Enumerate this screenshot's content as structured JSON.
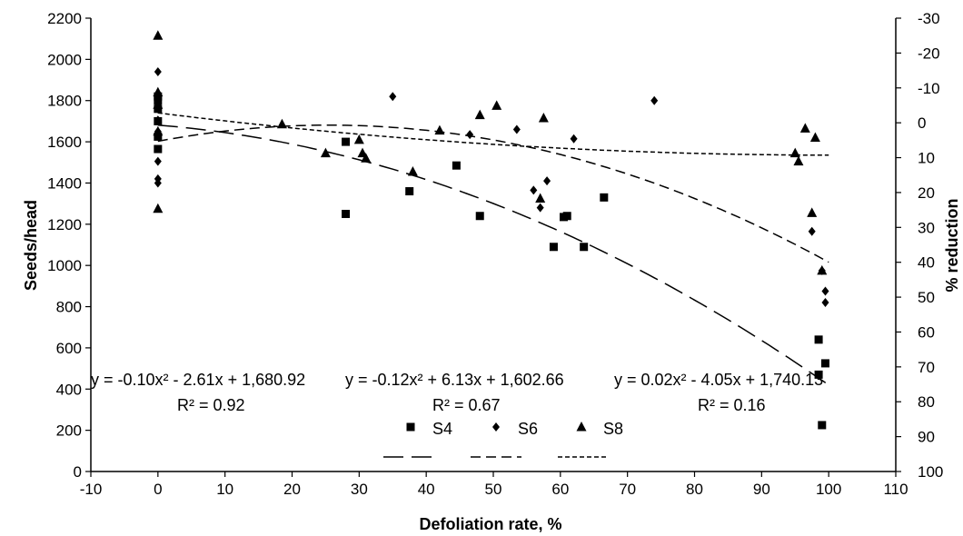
{
  "chart_data": {
    "type": "scatter",
    "title": "",
    "xlabel": "Defoliation rate, %",
    "ylabel": "Seeds/head",
    "y2label": "% reduction",
    "xlim": [
      -10,
      110
    ],
    "ylim": [
      0,
      2200
    ],
    "y2lim": [
      100,
      -30
    ],
    "x_ticks": [
      -10,
      0,
      10,
      20,
      30,
      40,
      50,
      60,
      70,
      80,
      90,
      100,
      110
    ],
    "y_ticks": [
      0,
      200,
      400,
      600,
      800,
      1000,
      1200,
      1400,
      1600,
      1800,
      2000,
      2200
    ],
    "y2_ticks": [
      100,
      90,
      80,
      70,
      60,
      50,
      40,
      30,
      20,
      10,
      0,
      -10,
      -20,
      -30
    ],
    "grid": false,
    "legend_position": "bottom-center",
    "series": [
      {
        "name": "S4",
        "marker": "square",
        "points": [
          [
            0,
            1565
          ],
          [
            0,
            1625
          ],
          [
            0,
            1700
          ],
          [
            0,
            1760
          ],
          [
            0,
            1800
          ],
          [
            0,
            1820
          ],
          [
            28,
            1250
          ],
          [
            28,
            1600
          ],
          [
            37.5,
            1360
          ],
          [
            44.5,
            1485
          ],
          [
            48,
            1240
          ],
          [
            59,
            1090
          ],
          [
            60.5,
            1235
          ],
          [
            61,
            1240
          ],
          [
            63.5,
            1090
          ],
          [
            66.5,
            1330
          ],
          [
            98.5,
            470
          ],
          [
            98.5,
            640
          ],
          [
            99,
            225
          ],
          [
            99.5,
            525
          ]
        ],
        "trend_equation": "y = -0.10x² - 2.61x + 1,680.92",
        "trend_r2": "R² = 0.92",
        "trend_coefficients": [
          -0.1,
          -2.61,
          1680.92
        ]
      },
      {
        "name": "S6",
        "marker": "diamond",
        "points": [
          [
            0,
            1940
          ],
          [
            0,
            1835
          ],
          [
            0,
            1800
          ],
          [
            0,
            1760
          ],
          [
            0,
            1705
          ],
          [
            0,
            1650
          ],
          [
            0,
            1505
          ],
          [
            0,
            1420
          ],
          [
            0,
            1400
          ],
          [
            35,
            1820
          ],
          [
            46.5,
            1635
          ],
          [
            53.5,
            1660
          ],
          [
            56,
            1365
          ],
          [
            57,
            1280
          ],
          [
            58,
            1410
          ],
          [
            62,
            1615
          ],
          [
            74,
            1800
          ],
          [
            97.5,
            1165
          ],
          [
            99,
            975
          ],
          [
            99.5,
            875
          ],
          [
            99.5,
            820
          ]
        ],
        "trend_equation": "y = -0.12x² + 6.13x + 1,602.66",
        "trend_r2": "R² = 0.67",
        "trend_coefficients": [
          -0.12,
          6.13,
          1602.66
        ]
      },
      {
        "name": "S8",
        "marker": "triangle",
        "points": [
          [
            0,
            2115
          ],
          [
            0,
            1840
          ],
          [
            0,
            1780
          ],
          [
            0,
            1650
          ],
          [
            0,
            1275
          ],
          [
            18.5,
            1685
          ],
          [
            25,
            1545
          ],
          [
            30,
            1610
          ],
          [
            30.5,
            1545
          ],
          [
            31,
            1520
          ],
          [
            38,
            1455
          ],
          [
            42,
            1655
          ],
          [
            48,
            1730
          ],
          [
            50.5,
            1775
          ],
          [
            57,
            1325
          ],
          [
            57.5,
            1715
          ],
          [
            95,
            1545
          ],
          [
            95.5,
            1505
          ],
          [
            96.5,
            1665
          ],
          [
            97.5,
            1255
          ],
          [
            98,
            1620
          ],
          [
            99,
            975
          ]
        ],
        "trend_equation": "y = 0.02x² - 4.05x + 1,740.13",
        "trend_r2": "R² = 0.16",
        "trend_coefficients": [
          0.02,
          -4.05,
          1740.13
        ]
      }
    ]
  }
}
